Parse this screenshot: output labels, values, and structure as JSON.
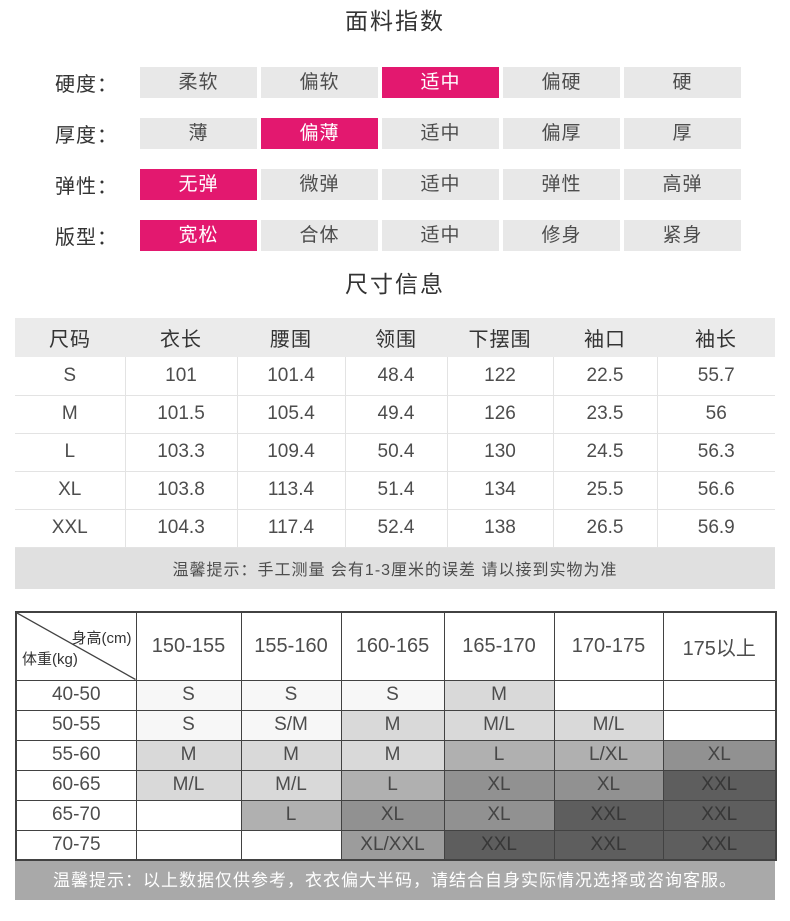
{
  "colors": {
    "accent": "#e3186f",
    "cell_bg": "#e8e8e8",
    "header_bg": "#ebebeb",
    "note_bg": "#e0e0e0",
    "chart_note_bg": "#a9a9a9",
    "line": "#424242",
    "text_strong": "#333333",
    "text_body": "#4d4d4d"
  },
  "fabric_index": {
    "title": "面料指数",
    "rows": [
      {
        "label": "硬度：",
        "options": [
          "柔软",
          "偏软",
          "适中",
          "偏硬",
          "硬"
        ],
        "selected": 2
      },
      {
        "label": "厚度：",
        "options": [
          "薄",
          "偏薄",
          "适中",
          "偏厚",
          "厚"
        ],
        "selected": 1
      },
      {
        "label": "弹性：",
        "options": [
          "无弹",
          "微弹",
          "适中",
          "弹性",
          "高弹"
        ],
        "selected": 0
      },
      {
        "label": "版型：",
        "options": [
          "宽松",
          "合体",
          "适中",
          "修身",
          "紧身"
        ],
        "selected": 0
      }
    ]
  },
  "size_info": {
    "title": "尺寸信息",
    "columns": [
      "尺码",
      "衣长",
      "腰围",
      "领围",
      "下摆围",
      "袖口",
      "袖长"
    ],
    "rows": [
      [
        "S",
        "101",
        "101.4",
        "48.4",
        "122",
        "22.5",
        "55.7"
      ],
      [
        "M",
        "101.5",
        "105.4",
        "49.4",
        "126",
        "23.5",
        "56"
      ],
      [
        "L",
        "103.3",
        "109.4",
        "50.4",
        "130",
        "24.5",
        "56.3"
      ],
      [
        "XL",
        "103.8",
        "113.4",
        "51.4",
        "134",
        "25.5",
        "56.6"
      ],
      [
        "XXL",
        "104.3",
        "117.4",
        "52.4",
        "138",
        "26.5",
        "56.9"
      ]
    ],
    "note": "温馨提示：手工测量 会有1-3厘米的误差 请以接到实物为准"
  },
  "size_chart": {
    "corner": {
      "top_right": "身高(cm)",
      "bottom_left": "体重(kg)"
    },
    "height_columns": [
      "150-155",
      "155-160",
      "160-165",
      "165-170",
      "170-175",
      "175以上"
    ],
    "weight_rows": [
      "40-50",
      "50-55",
      "55-60",
      "60-65",
      "65-70",
      "70-75"
    ],
    "cells": [
      [
        {
          "t": "S",
          "s": "s"
        },
        {
          "t": "S",
          "s": "s"
        },
        {
          "t": "S",
          "s": "s"
        },
        {
          "t": "M",
          "s": "m"
        },
        {
          "t": "",
          "s": "none"
        },
        {
          "t": "",
          "s": "none"
        }
      ],
      [
        {
          "t": "S",
          "s": "s"
        },
        {
          "t": "S/M",
          "s": "s"
        },
        {
          "t": "M",
          "s": "m"
        },
        {
          "t": "M/L",
          "s": "m"
        },
        {
          "t": "M/L",
          "s": "m"
        },
        {
          "t": "",
          "s": "none"
        }
      ],
      [
        {
          "t": "M",
          "s": "m"
        },
        {
          "t": "M",
          "s": "m"
        },
        {
          "t": "M",
          "s": "m"
        },
        {
          "t": "L",
          "s": "l"
        },
        {
          "t": "L/XL",
          "s": "l"
        },
        {
          "t": "XL",
          "s": "xl"
        }
      ],
      [
        {
          "t": "M/L",
          "s": "m"
        },
        {
          "t": "M/L",
          "s": "m"
        },
        {
          "t": "L",
          "s": "l"
        },
        {
          "t": "XL",
          "s": "xl"
        },
        {
          "t": "XL",
          "s": "xl"
        },
        {
          "t": "XXL",
          "s": "xxl"
        }
      ],
      [
        {
          "t": "",
          "s": "none"
        },
        {
          "t": "L",
          "s": "l"
        },
        {
          "t": "XL",
          "s": "xl"
        },
        {
          "t": "XL",
          "s": "xl"
        },
        {
          "t": "XXL",
          "s": "xxl"
        },
        {
          "t": "XXL",
          "s": "xxl"
        }
      ],
      [
        {
          "t": "",
          "s": "none"
        },
        {
          "t": "",
          "s": "none"
        },
        {
          "t": "XL/XXL",
          "s": "xlxxl"
        },
        {
          "t": "XXL",
          "s": "xxl"
        },
        {
          "t": "XXL",
          "s": "xxl"
        },
        {
          "t": "XXL",
          "s": "xxl"
        }
      ]
    ],
    "shades": {
      "none": {
        "bg": "#ffffff",
        "text": "#4d4d4d"
      },
      "s": {
        "bg": "#f7f7f7",
        "text": "#4d4d4d"
      },
      "m": {
        "bg": "#d9d9d9",
        "text": "#4d4d4d"
      },
      "l": {
        "bg": "#b0b0b0",
        "text": "#484848"
      },
      "xl": {
        "bg": "#919191",
        "text": "#454545"
      },
      "xlxxl": {
        "bg": "#9c9c9c",
        "text": "#454545"
      },
      "xxl": {
        "bg": "#5e5e5e",
        "text": "#373737"
      }
    },
    "note": "温馨提示：以上数据仅供参考，衣衣偏大半码，请结合自身实际情况选择或咨询客服。"
  }
}
